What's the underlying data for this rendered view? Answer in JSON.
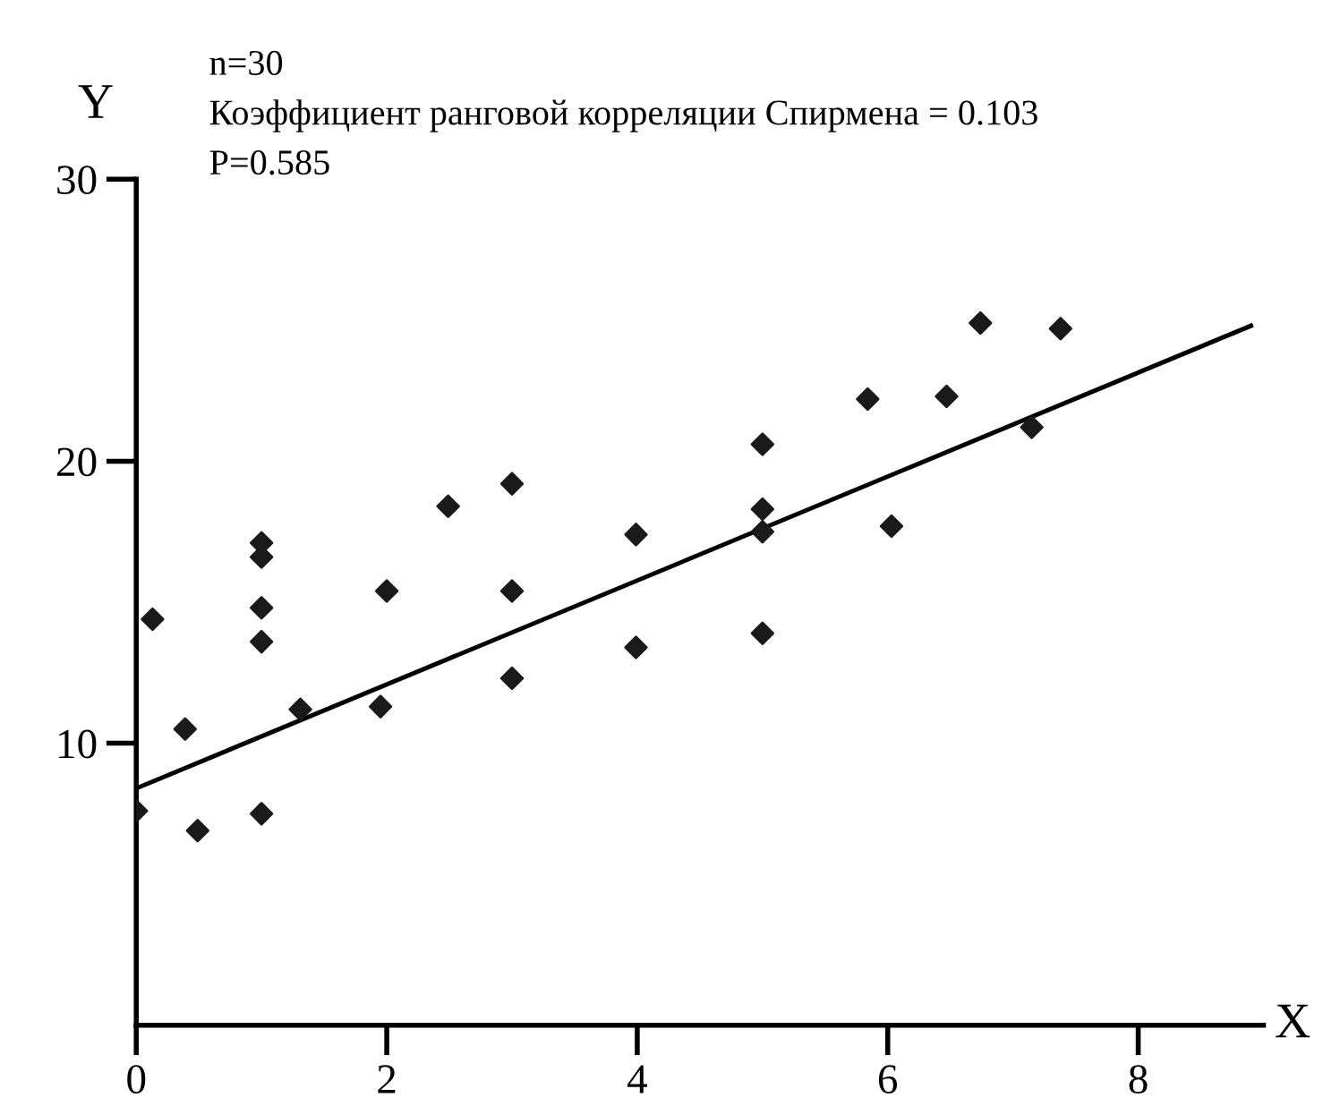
{
  "chart_data": {
    "type": "scatter",
    "xlabel": "X",
    "ylabel": "Y",
    "annotations": [
      "n=30",
      "Коэффициент ранговой корреляции Спирмена = 0.103",
      "P=0.585"
    ],
    "xlim": [
      0,
      9
    ],
    "ylim": [
      0,
      30
    ],
    "xticks": [
      0,
      2,
      4,
      6,
      8
    ],
    "yticks": [
      10,
      20,
      30
    ],
    "grid": false,
    "legend": false,
    "series": [
      {
        "color": "#1a1a1a",
        "marker": "diamond",
        "x": [
          0.13,
          0.0,
          0.39,
          0.49,
          1.0,
          1.0,
          1.0,
          1.0,
          1.0,
          1.31,
          1.95,
          2.0,
          2.49,
          3.0,
          3.0,
          3.0,
          3.99,
          3.99,
          5.0,
          5.0,
          5.0,
          5.0,
          5.84,
          6.03,
          6.47,
          6.74,
          7.15,
          7.38
        ],
        "values": [
          14.4,
          7.6,
          10.5,
          6.9,
          17.1,
          16.6,
          14.8,
          13.6,
          7.5,
          11.2,
          11.3,
          15.4,
          18.4,
          19.2,
          15.4,
          12.3,
          17.4,
          13.4,
          20.6,
          18.3,
          17.5,
          13.9,
          22.2,
          17.7,
          22.3,
          24.9,
          21.2,
          24.7
        ]
      },
      {
        "type": "line",
        "color": "#000000",
        "line_style": "solid",
        "marker": "none",
        "x": [
          0,
          8.9
        ],
        "values": [
          8.4,
          24.8
        ]
      }
    ]
  }
}
